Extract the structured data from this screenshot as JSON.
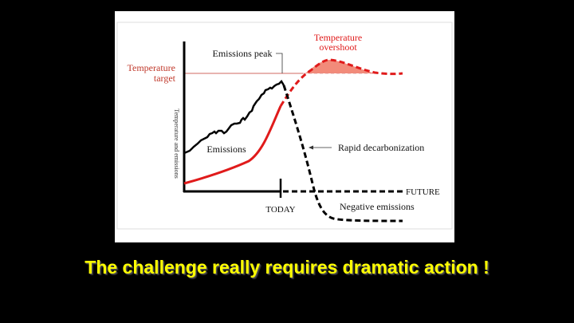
{
  "slide": {
    "caption": "The challenge really requires dramatic action !"
  },
  "diagram": {
    "y_axis_label": "Temperature and emissions",
    "temperature_target_line1": "Temperature",
    "temperature_target_line2": "target",
    "emissions_peak": "Emissions peak",
    "temperature_overshoot_line1": "Temperature",
    "temperature_overshoot_line2": "overshoot",
    "emissions": "Emissions",
    "rapid_decarbonization": "Rapid decarbonization",
    "today": "TODAY",
    "future": "FUTURE",
    "negative_emissions": "Negative emissions",
    "colors": {
      "temperature": "#e01b1b",
      "target_label": "#c0392b",
      "emissions": "#000000",
      "overshoot_fill": "#f28b7a",
      "caption": "#ffff00"
    }
  }
}
